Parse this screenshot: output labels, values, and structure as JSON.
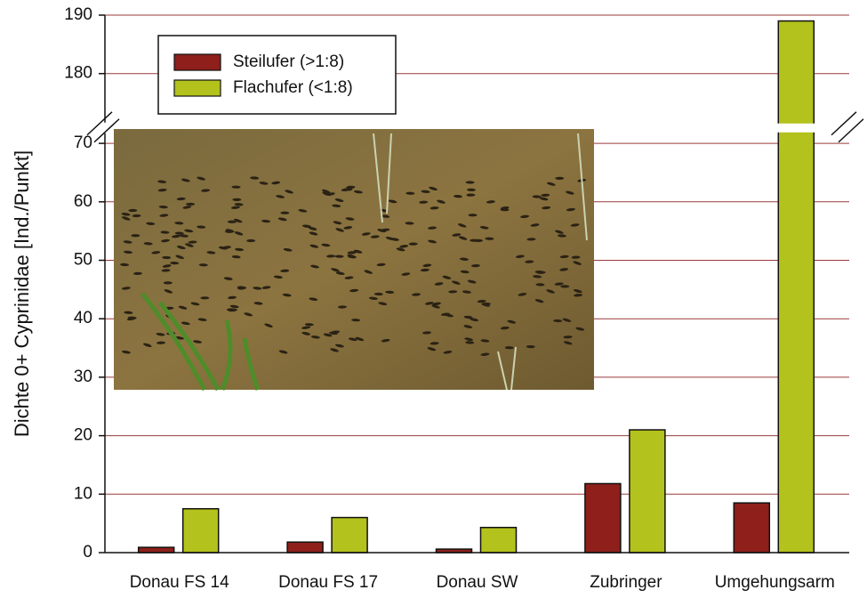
{
  "chart_data": {
    "type": "bar",
    "y_label": "Dichte 0+ Cyprinidae [Ind./Punkt]",
    "categories": [
      "Donau FS 14",
      "Donau FS 17",
      "Donau SW",
      "Zubringer",
      "Umgehungsarm"
    ],
    "series": [
      {
        "name": "Steilufer (>1:8)",
        "color": "#8e1f1a",
        "values": [
          0.9,
          1.8,
          0.6,
          11.8,
          8.5
        ]
      },
      {
        "name": "Flachufer (<1:8)",
        "color": "#b3c21c",
        "values": [
          7.5,
          6.0,
          4.3,
          21.0,
          189.0
        ]
      }
    ],
    "ylim": [
      0,
      190
    ],
    "y_break": [
      73,
      174
    ],
    "yticks": [
      0,
      10,
      20,
      30,
      40,
      50,
      60,
      70,
      180,
      190
    ],
    "grid": true,
    "grid_color": "#9a3a3a",
    "legend": "upper left"
  }
}
